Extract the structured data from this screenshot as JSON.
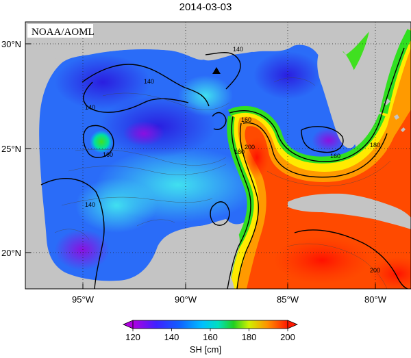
{
  "title": "2014-03-03",
  "credit": "NOAA/AOML",
  "map": {
    "lat_ticks": [
      "30°N",
      "25°N",
      "20°N"
    ],
    "lon_ticks": [
      "95°W",
      "90°W",
      "85°W",
      "80°W"
    ],
    "contour_labels": [
      "140",
      "140",
      "140",
      "140",
      "160",
      "160",
      "160",
      "180",
      "180",
      "200",
      "200"
    ],
    "colors": {
      "land": "#c4c4c4",
      "ocean_low": "#3a48f0",
      "ocean_high": "#ff2a00"
    }
  },
  "colorbar": {
    "label": "SH [cm]",
    "ticks": [
      "120",
      "140",
      "160",
      "180",
      "200"
    ],
    "stops": [
      "#b000e0",
      "#2020ff",
      "#00b8ff",
      "#00e8c8",
      "#20d000",
      "#d8f000",
      "#ff9000",
      "#ff1800"
    ]
  }
}
